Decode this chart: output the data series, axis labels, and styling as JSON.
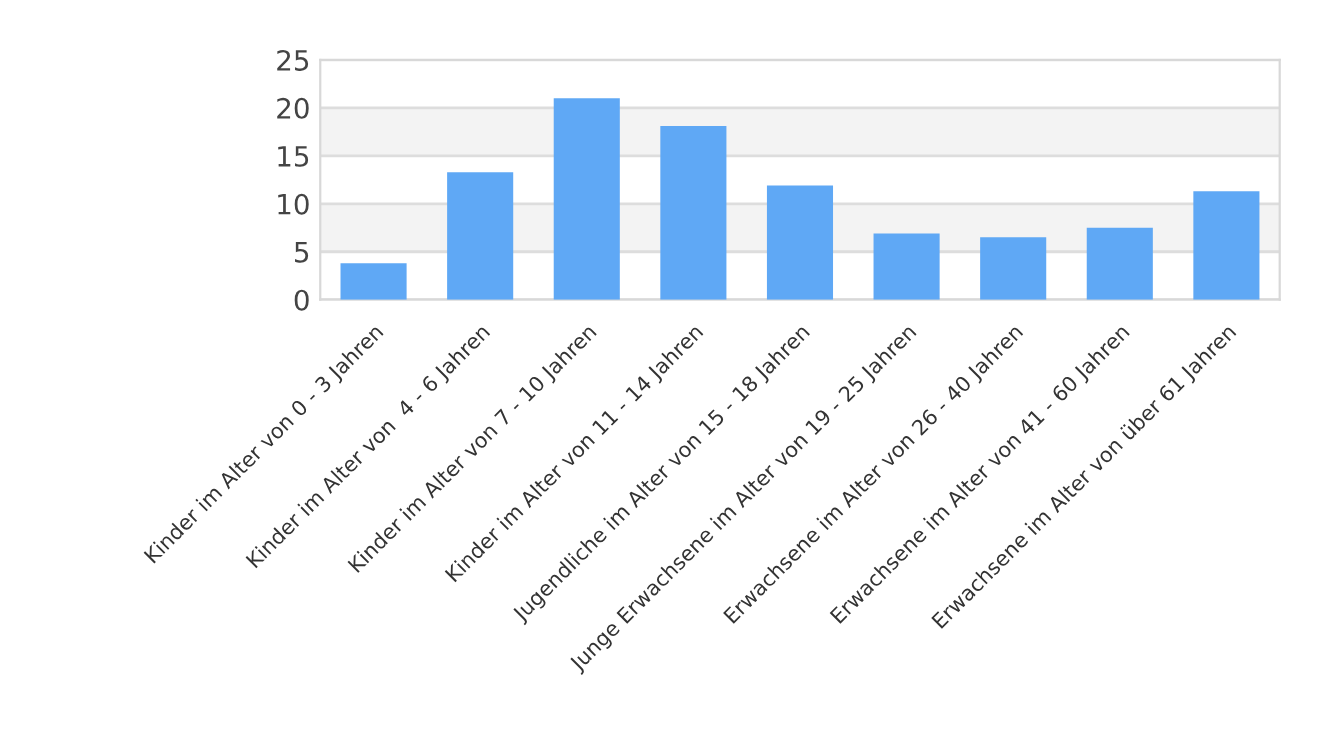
{
  "chart_data": {
    "type": "bar",
    "categories": [
      "Kinder im Alter von 0 - 3 Jahren",
      "Kinder im Alter von  4 - 6 Jahren",
      "Kinder im Alter von 7 - 10 Jahren",
      "Kinder im Alter von 11 - 14 Jahren",
      "Jugendliche im Alter von 15 - 18 Jahren",
      "Junge Erwachsene im Alter von 19 - 25 Jahren",
      "Erwachsene im Alter von 26 - 40 Jahren",
      "Erwachsene im Alter von 41 - 60 Jahren",
      "Erwachsene im Alter von über 61 Jahren"
    ],
    "values": [
      3.8,
      13.3,
      21.0,
      18.1,
      11.9,
      6.9,
      6.5,
      7.5,
      11.3
    ],
    "color": "#5fa8f5",
    "ylim": [
      0,
      25
    ],
    "yticks": [
      0,
      5,
      10,
      15,
      20,
      25
    ],
    "grid": "y",
    "legend": false,
    "bands": [
      {
        "axis": "y",
        "from": 5,
        "to": 10,
        "color": "#f3f3f3"
      },
      {
        "axis": "y",
        "from": 15,
        "to": 20,
        "color": "#f3f3f3"
      }
    ]
  }
}
